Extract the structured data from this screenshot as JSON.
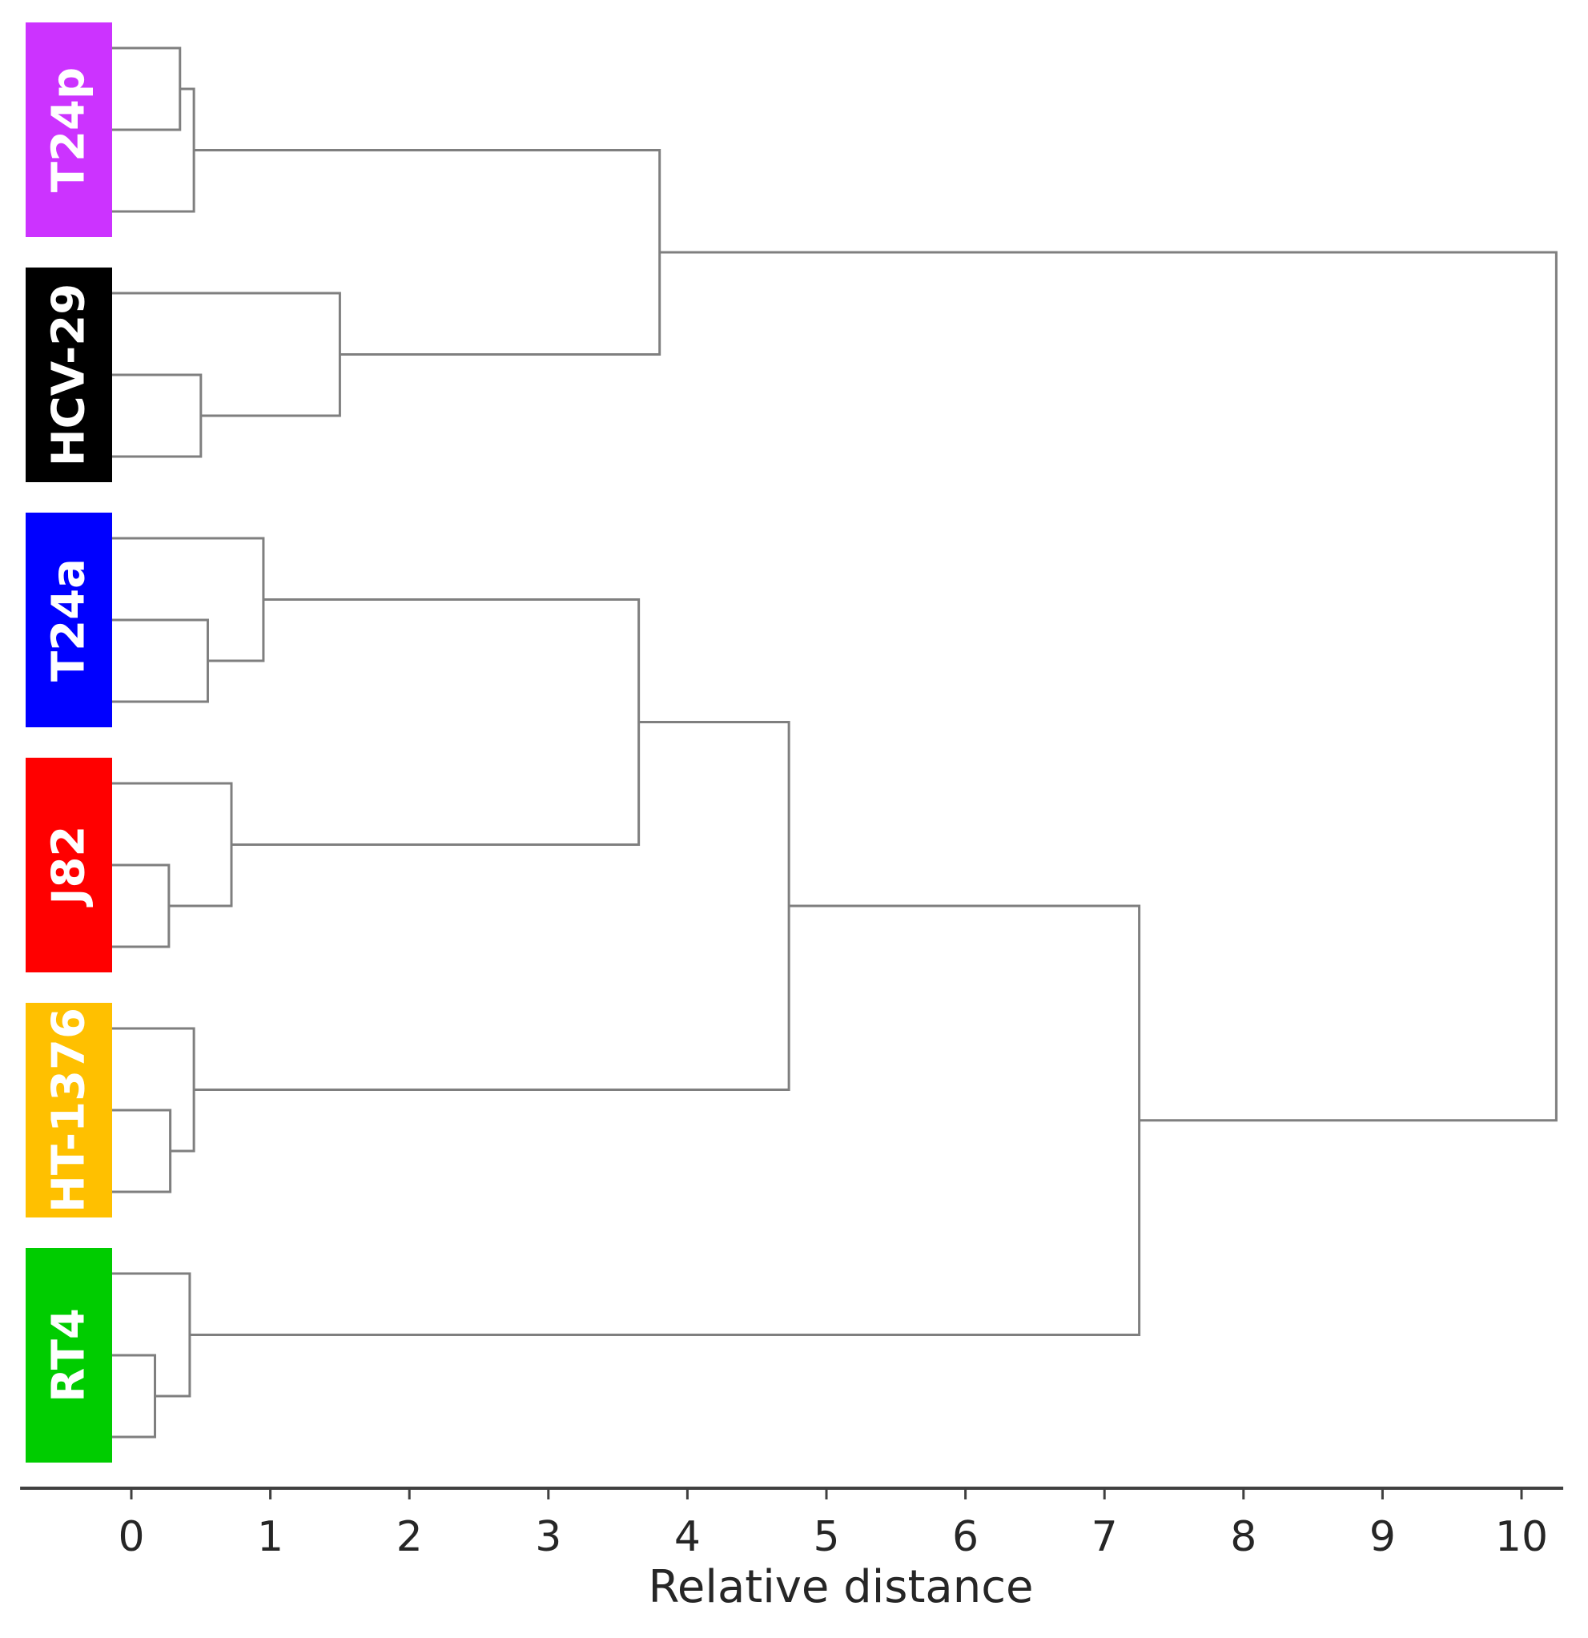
{
  "chart_data": {
    "type": "dendrogram",
    "orientation": "horizontal",
    "xlabel": "Relative distance",
    "xlim": [
      -0.8,
      10.3
    ],
    "xticks": [
      0,
      1,
      2,
      3,
      4,
      5,
      6,
      7,
      8,
      9,
      10
    ],
    "groups": [
      {
        "label": "T24p",
        "color": "#cc33ff",
        "leaves": [
          0,
          1,
          2
        ]
      },
      {
        "label": "HCV-29",
        "color": "#000000",
        "leaves": [
          3,
          4,
          5
        ]
      },
      {
        "label": "T24a",
        "color": "#0000ff",
        "leaves": [
          6,
          7,
          8
        ]
      },
      {
        "label": "J82",
        "color": "#ff0000",
        "leaves": [
          9,
          10,
          11
        ]
      },
      {
        "label": "HT-1376",
        "color": "#ffc000",
        "leaves": [
          12,
          13,
          14
        ]
      },
      {
        "label": "RT4",
        "color": "#00cc00",
        "leaves": [
          15,
          16,
          17
        ]
      }
    ],
    "leaf_count": 18,
    "merges": [
      {
        "id": "m1",
        "a": "L0",
        "b": "L1",
        "height": 0.35
      },
      {
        "id": "m2",
        "a": "m1",
        "b": "L2",
        "height": 0.45
      },
      {
        "id": "m3",
        "a": "L4",
        "b": "L5",
        "height": 0.5
      },
      {
        "id": "m4",
        "a": "L3",
        "b": "m3",
        "height": 1.5
      },
      {
        "id": "m5",
        "a": "m2",
        "b": "m4",
        "height": 3.8
      },
      {
        "id": "m6",
        "a": "L7",
        "b": "L8",
        "height": 0.55
      },
      {
        "id": "m7",
        "a": "L6",
        "b": "m6",
        "height": 0.95
      },
      {
        "id": "m8",
        "a": "L10",
        "b": "L11",
        "height": 0.27
      },
      {
        "id": "m9",
        "a": "L9",
        "b": "m8",
        "height": 0.72
      },
      {
        "id": "m10",
        "a": "m7",
        "b": "m9",
        "height": 3.65
      },
      {
        "id": "m11",
        "a": "L13",
        "b": "L14",
        "height": 0.28
      },
      {
        "id": "m12",
        "a": "L12",
        "b": "m11",
        "height": 0.45
      },
      {
        "id": "m13",
        "a": "m10",
        "b": "m12",
        "height": 4.73
      },
      {
        "id": "m14",
        "a": "L16",
        "b": "L17",
        "height": 0.17
      },
      {
        "id": "m15",
        "a": "L15",
        "b": "m14",
        "height": 0.42
      },
      {
        "id": "m16",
        "a": "m13",
        "b": "m15",
        "height": 7.25
      },
      {
        "id": "m17",
        "a": "m5",
        "b": "m16",
        "height": 10.25
      }
    ]
  }
}
